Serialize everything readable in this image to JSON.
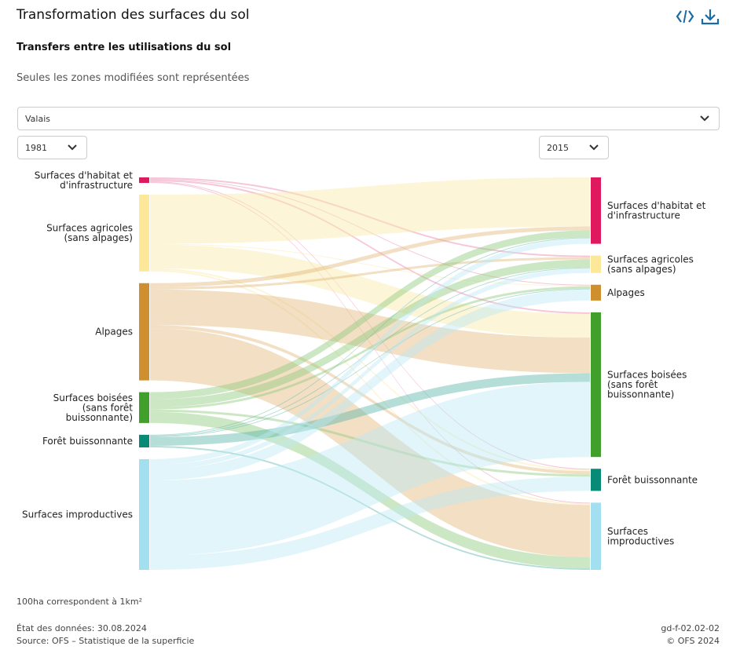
{
  "header": {
    "title": "Transformation des surfaces du sol",
    "subtitle": "Transfers entre les utilisations du sol",
    "note": "Seules les zones modifiées sont représentées",
    "icons": [
      "embed-code-icon",
      "download-icon"
    ],
    "accent_color": "#1a6aa5"
  },
  "filters": {
    "region": "Valais",
    "year_from": "1981",
    "year_to": "2015"
  },
  "chart_data": {
    "type": "sankey",
    "title": "Transfers entre les utilisations du sol",
    "unit": "ha",
    "left_label": "1981",
    "right_label": "2015",
    "categories": [
      {
        "id": "hab",
        "label_lines": [
          "Surfaces d'habitat et",
          "d'infrastructure"
        ],
        "color": "#e0185e",
        "link_color": "#e883aa"
      },
      {
        "id": "agr",
        "label_lines": [
          "Surfaces agricoles",
          "(sans alpages)"
        ],
        "color": "#fce898",
        "link_color": "#fbe9a6"
      },
      {
        "id": "alp",
        "label_lines": [
          "Alpages"
        ],
        "color": "#d08f2e",
        "link_color": "#e2b87c"
      },
      {
        "id": "bois",
        "label_lines": [
          "Surfaces boisées",
          "(sans forêt",
          "buissonnante)"
        ],
        "color": "#41a02c",
        "link_color": "#8dc97d"
      },
      {
        "id": "fb",
        "label_lines": [
          "Forêt buissonnante"
        ],
        "color": "#078a76",
        "link_color": "#5cb6aa"
      },
      {
        "id": "impr",
        "label_lines": [
          "Surfaces improductives"
        ],
        "color": "#a2dff0",
        "link_color": "#bde8f5"
      }
    ],
    "right_label_lines": {
      "hab": [
        "Surfaces d'habitat et",
        "d'infrastructure"
      ],
      "agr": [
        "Surfaces agricoles",
        "(sans alpages)"
      ],
      "alp": [
        "Alpages"
      ],
      "bois": [
        "Surfaces boisées",
        "(sans forêt",
        "buissonnante)"
      ],
      "fb": [
        "Forêt buissonnante"
      ],
      "impr": [
        "Surfaces",
        "improductives"
      ]
    },
    "links": [
      {
        "source": "hab",
        "target": "agr",
        "value": 2
      },
      {
        "source": "hab",
        "target": "alp",
        "value": 1
      },
      {
        "source": "hab",
        "target": "bois",
        "value": 2
      },
      {
        "source": "hab",
        "target": "fb",
        "value": 1
      },
      {
        "source": "hab",
        "target": "impr",
        "value": 1
      },
      {
        "source": "agr",
        "target": "hab",
        "value": 62
      },
      {
        "source": "agr",
        "target": "alp",
        "value": 1
      },
      {
        "source": "agr",
        "target": "bois",
        "value": 30
      },
      {
        "source": "agr",
        "target": "fb",
        "value": 2
      },
      {
        "source": "agr",
        "target": "impr",
        "value": 2
      },
      {
        "source": "alp",
        "target": "hab",
        "value": 5
      },
      {
        "source": "alp",
        "target": "agr",
        "value": 3
      },
      {
        "source": "alp",
        "target": "bois",
        "value": 45
      },
      {
        "source": "alp",
        "target": "fb",
        "value": 4
      },
      {
        "source": "alp",
        "target": "impr",
        "value": 66
      },
      {
        "source": "bois",
        "target": "hab",
        "value": 9
      },
      {
        "source": "bois",
        "target": "agr",
        "value": 10
      },
      {
        "source": "bois",
        "target": "alp",
        "value": 3
      },
      {
        "source": "bois",
        "target": "fb",
        "value": 3
      },
      {
        "source": "bois",
        "target": "impr",
        "value": 14
      },
      {
        "source": "fb",
        "target": "hab",
        "value": 1
      },
      {
        "source": "fb",
        "target": "agr",
        "value": 1
      },
      {
        "source": "fb",
        "target": "alp",
        "value": 1
      },
      {
        "source": "fb",
        "target": "bois",
        "value": 11
      },
      {
        "source": "fb",
        "target": "impr",
        "value": 2
      },
      {
        "source": "impr",
        "target": "hab",
        "value": 7
      },
      {
        "source": "impr",
        "target": "agr",
        "value": 6
      },
      {
        "source": "impr",
        "target": "alp",
        "value": 14
      },
      {
        "source": "impr",
        "target": "bois",
        "value": 95
      },
      {
        "source": "impr",
        "target": "fb",
        "value": 18
      }
    ]
  },
  "footer": {
    "unit_note": "100ha correspondent à 1km²",
    "data_state": "État des données: 30.08.2024",
    "source": "Source: OFS – Statistique de la superficie",
    "code": "gd-f-02.02-02",
    "copyright": "© OFS 2024"
  }
}
